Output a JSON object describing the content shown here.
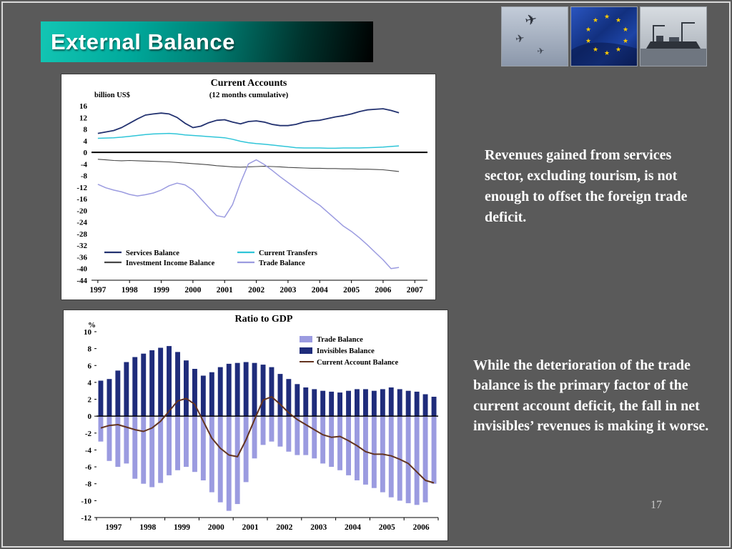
{
  "slide": {
    "title": "External Balance",
    "page_number": "17",
    "background_color": "#5a5a5a",
    "banner_teal": "#00a99b"
  },
  "text_blocks": {
    "block1": "Revenues gained from services sector, excluding tourism, is not enough to offset the foreign trade deficit.",
    "block2": "While the deterioration of the trade balance is the primary factor of the current account deficit, the fall in net invisibles’ revenues is making it worse."
  },
  "chart_data": [
    {
      "type": "line",
      "title": "Current Accounts",
      "subtitle": "(12 months cumulative)",
      "ylabel": "billion US$",
      "ylim": [
        -44,
        16
      ],
      "ytick_step": 4,
      "x_years": [
        1997,
        1998,
        1999,
        2000,
        2001,
        2002,
        2003,
        2004,
        2005,
        2006,
        2007
      ],
      "x_start": 1997,
      "x_step": 0.25,
      "series": [
        {
          "name": "Services Balance",
          "color": "#233270",
          "values": [
            6.5,
            7.0,
            7.5,
            8.5,
            10.0,
            11.5,
            12.8,
            13.2,
            13.5,
            13.2,
            12.0,
            10.0,
            8.5,
            9.0,
            10.2,
            11.0,
            11.2,
            10.4,
            9.8,
            10.6,
            10.8,
            10.4,
            9.6,
            9.2,
            9.2,
            9.6,
            10.4,
            10.8,
            11.0,
            11.6,
            12.2,
            12.6,
            13.2,
            14.0,
            14.6,
            14.8,
            15.0,
            14.4,
            13.6
          ]
        },
        {
          "name": "Current Transfers",
          "color": "#2fc5d8",
          "values": [
            4.8,
            4.9,
            5.0,
            5.2,
            5.5,
            5.8,
            6.1,
            6.3,
            6.4,
            6.5,
            6.3,
            6.0,
            5.8,
            5.6,
            5.4,
            5.2,
            5.0,
            4.5,
            3.8,
            3.3,
            3.0,
            2.8,
            2.5,
            2.2,
            1.9,
            1.6,
            1.5,
            1.5,
            1.5,
            1.4,
            1.4,
            1.5,
            1.5,
            1.5,
            1.6,
            1.7,
            1.8,
            2.0,
            2.2
          ]
        },
        {
          "name": "Investment Income Balance",
          "color": "#474747",
          "values": [
            -2.4,
            -2.6,
            -2.8,
            -2.9,
            -2.8,
            -2.9,
            -3.0,
            -3.1,
            -3.2,
            -3.3,
            -3.5,
            -3.7,
            -3.9,
            -4.1,
            -4.3,
            -4.6,
            -4.8,
            -5.0,
            -5.1,
            -5.0,
            -4.9,
            -4.8,
            -4.9,
            -5.0,
            -5.2,
            -5.3,
            -5.4,
            -5.5,
            -5.5,
            -5.6,
            -5.6,
            -5.7,
            -5.7,
            -5.8,
            -5.8,
            -5.9,
            -6.0,
            -6.3,
            -6.6
          ]
        },
        {
          "name": "Trade Balance",
          "color": "#9b9be0",
          "values": [
            -11.0,
            -12.2,
            -13.0,
            -13.6,
            -14.5,
            -15.0,
            -14.6,
            -14.0,
            -13.0,
            -11.5,
            -10.6,
            -11.2,
            -13.0,
            -16.0,
            -19.0,
            -21.8,
            -22.3,
            -18.0,
            -10.5,
            -4.0,
            -2.6,
            -4.2,
            -6.2,
            -8.4,
            -10.4,
            -12.4,
            -14.4,
            -16.4,
            -18.2,
            -20.6,
            -23.0,
            -25.4,
            -27.2,
            -29.4,
            -31.8,
            -34.4,
            -37.0,
            -40.0,
            -39.6
          ]
        }
      ]
    },
    {
      "type": "bar",
      "title": "Ratio to GDP",
      "ylabel": "%",
      "ylim": [
        -12,
        10
      ],
      "ytick_step": 2,
      "x_years": [
        1997,
        1998,
        1999,
        2000,
        2001,
        2002,
        2003,
        2004,
        2005,
        2006
      ],
      "bars_per_year": 4,
      "bar_series": [
        {
          "name": "Trade Balance",
          "color": "#9b9be0",
          "values": [
            -3.0,
            -5.3,
            -6.0,
            -5.6,
            -7.4,
            -8.0,
            -8.4,
            -7.9,
            -7.0,
            -6.4,
            -6.0,
            -6.6,
            -7.6,
            -9.0,
            -10.2,
            -11.2,
            -10.4,
            -7.8,
            -5.0,
            -3.4,
            -3.0,
            -3.6,
            -4.2,
            -4.6,
            -4.6,
            -5.0,
            -5.6,
            -6.0,
            -6.4,
            -7.0,
            -7.6,
            -8.1,
            -8.5,
            -9.0,
            -9.6,
            -10.0,
            -10.3,
            -10.5,
            -10.2,
            -8.0
          ]
        },
        {
          "name": "Invisibles Balance",
          "color": "#1f2c7b",
          "values": [
            4.2,
            4.4,
            5.4,
            6.4,
            7.0,
            7.4,
            7.8,
            8.1,
            8.3,
            7.6,
            6.6,
            5.6,
            4.8,
            5.2,
            5.8,
            6.2,
            6.3,
            6.4,
            6.3,
            6.1,
            5.8,
            5.0,
            4.4,
            3.8,
            3.4,
            3.2,
            3.0,
            2.9,
            2.8,
            3.0,
            3.2,
            3.2,
            3.0,
            3.2,
            3.4,
            3.2,
            3.0,
            2.9,
            2.6,
            2.3
          ]
        }
      ],
      "line_series": [
        {
          "name": "Current Account Balance",
          "color": "#63331f",
          "values": [
            -1.4,
            -1.1,
            -1.0,
            -1.3,
            -1.6,
            -1.8,
            -1.4,
            -0.6,
            0.6,
            1.8,
            2.1,
            1.4,
            -0.6,
            -2.6,
            -3.8,
            -4.6,
            -4.8,
            -2.8,
            -0.4,
            1.9,
            2.3,
            1.4,
            0.4,
            -0.4,
            -1.0,
            -1.6,
            -2.2,
            -2.5,
            -2.4,
            -2.9,
            -3.5,
            -4.2,
            -4.5,
            -4.5,
            -4.7,
            -5.1,
            -5.6,
            -6.6,
            -7.6,
            -7.9
          ]
        }
      ]
    }
  ]
}
